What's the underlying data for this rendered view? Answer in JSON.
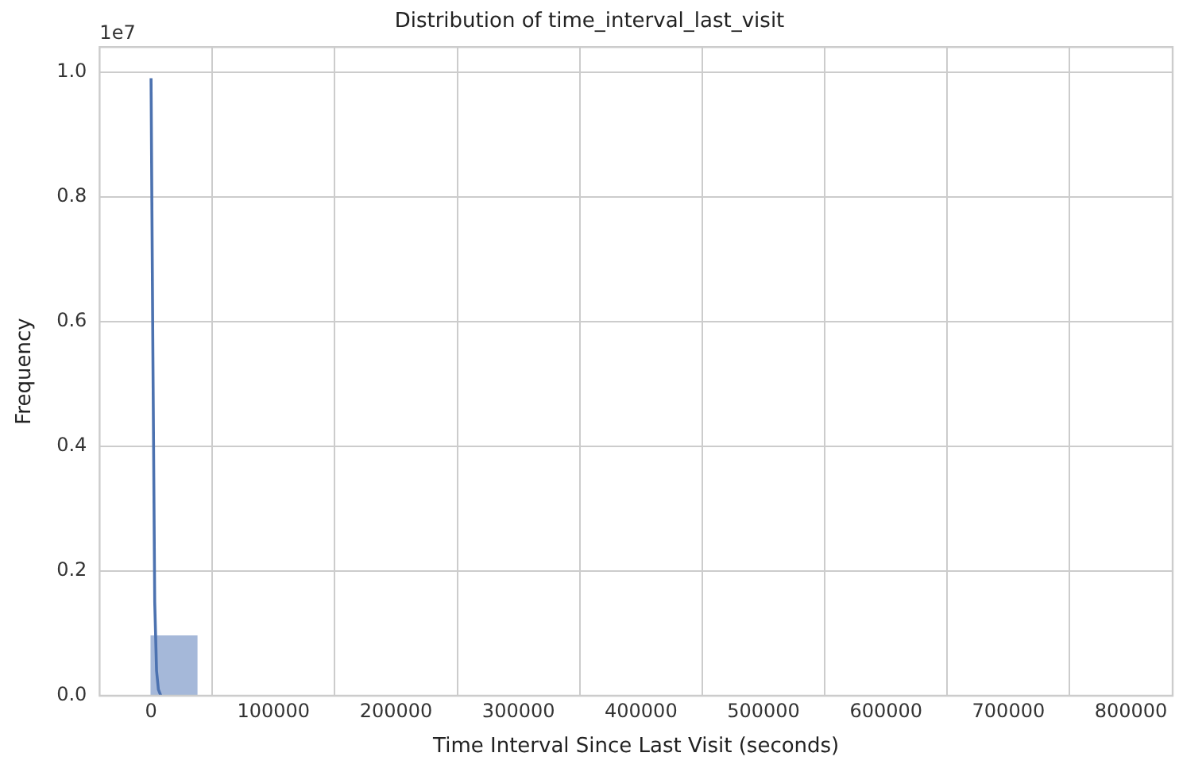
{
  "chart_data": {
    "type": "histogram",
    "title": "Distribution of time_interval_last_visit",
    "xlabel": "Time Interval Since Last Visit (seconds)",
    "ylabel": "Frequency",
    "bins": [
      0,
      37500,
      75000,
      112500,
      150000,
      187500,
      225000,
      262500,
      300000,
      337500,
      375000,
      412500,
      450000,
      487500,
      525000,
      562500,
      600000,
      637500,
      675000,
      712500,
      750000,
      787500,
      825000
    ],
    "values": [
      0.096,
      0,
      0,
      0,
      0,
      0,
      0,
      0,
      0,
      0,
      0,
      0,
      0,
      0,
      0,
      0,
      0,
      0,
      0,
      0,
      0,
      0
    ],
    "color": "#a5b8d9",
    "series": [
      {
        "type": "line",
        "color": "#4c72b0",
        "x": [
          0,
          1500,
          3000,
          4500,
          6000,
          8000
        ],
        "values": [
          0.99,
          0.55,
          0.15,
          0.04,
          0.01,
          0
        ],
        "marker": "none"
      }
    ],
    "xlim": [
      -42000,
      834000
    ],
    "xticks": [
      0,
      100000,
      200000,
      300000,
      400000,
      500000,
      600000,
      700000,
      800000
    ],
    "ylim": [
      0,
      1.04
    ],
    "yticks": [
      {
        "value": 0,
        "label": "0.0"
      },
      0.2,
      0.4,
      0.6,
      0.8,
      {
        "value": 1,
        "label": "1.0"
      }
    ],
    "annotations": [
      "1e7"
    ],
    "grid": true,
    "legend": false
  }
}
